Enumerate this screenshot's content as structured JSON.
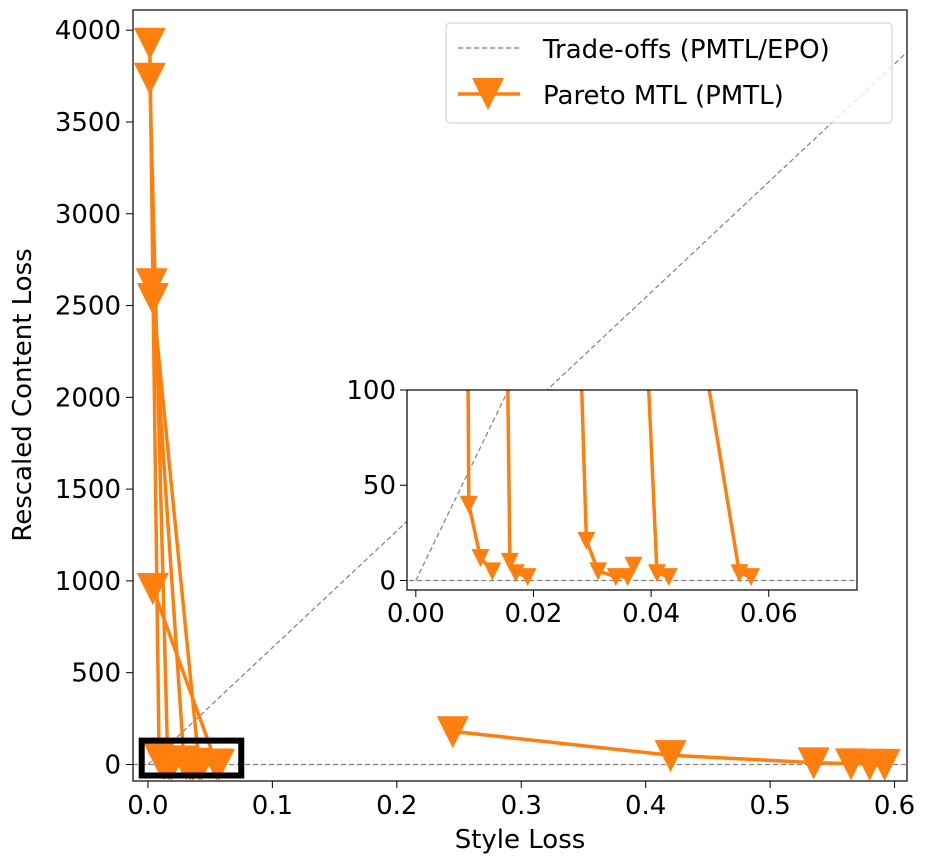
{
  "chart_data": {
    "type": "line",
    "xlabel": "Style Loss",
    "ylabel": "Rescaled Content Loss",
    "xlim": [
      -0.012,
      0.61
    ],
    "ylim": [
      -90,
      4110
    ],
    "xticks": [
      0.0,
      0.1,
      0.2,
      0.3,
      0.4,
      0.5,
      0.6
    ],
    "xtick_labels": [
      "0.0",
      "0.1",
      "0.2",
      "0.3",
      "0.4",
      "0.5",
      "0.6"
    ],
    "yticks": [
      0,
      500,
      1000,
      1500,
      2000,
      2500,
      3000,
      3500,
      4000
    ],
    "ytick_labels": [
      "0",
      "500",
      "1000",
      "1500",
      "2000",
      "2500",
      "3000",
      "3500",
      "4000"
    ],
    "legend": {
      "location": "top-right",
      "entries": [
        "Trade-offs (PMTL/EPO)",
        "Pareto MTL (PMTL)"
      ]
    },
    "colors": {
      "pmtl": "#ff7f0e",
      "tradeoff": "#808080",
      "zoom_box": "#000000"
    },
    "series": [
      {
        "name": "Pareto MTL (PMTL)",
        "style": "solid-line-triangle-down-markers",
        "runs": [
          {
            "x": [
              0.0015,
              0.009,
              0.011,
              0.013
            ],
            "y": [
              3930,
              40,
              12,
              5
            ]
          },
          {
            "x": [
              0.0015,
              0.016,
              0.017,
              0.019
            ],
            "y": [
              3740,
              10,
              4,
              2
            ]
          },
          {
            "x": [
              0.003,
              0.029,
              0.031,
              0.034,
              0.036,
              0.037
            ],
            "y": [
              2620,
              21,
              5,
              2,
              2,
              8
            ]
          },
          {
            "x": [
              0.004,
              0.041,
              0.043
            ],
            "y": [
              2540,
              4,
              2
            ]
          },
          {
            "x": [
              0.004,
              0.055,
              0.057
            ],
            "y": [
              960,
              4,
              2
            ]
          },
          {
            "x": [
              0.245,
              0.42,
              0.535,
              0.565,
              0.58,
              0.592
            ],
            "y": [
              180,
              50,
              10,
              5,
              3,
              2
            ]
          }
        ]
      },
      {
        "name": "Trade-offs (PMTL/EPO)",
        "style": "dashed-gray",
        "lines": [
          {
            "x": [
              0.0,
              0.61
            ],
            "y": [
              0,
              3880
            ]
          },
          {
            "x": [
              -0.012,
              0.61
            ],
            "y": [
              0,
              0
            ]
          }
        ]
      }
    ],
    "zoom_box": {
      "x": [
        -0.005,
        0.075
      ],
      "y": [
        -60,
        130
      ]
    },
    "inset": {
      "xlim": [
        -0.0015,
        0.075
      ],
      "ylim": [
        -5,
        100
      ],
      "xticks": [
        0.0,
        0.02,
        0.04,
        0.06
      ],
      "xtick_labels": [
        "0.00",
        "0.02",
        "0.04",
        "0.06"
      ],
      "yticks": [
        0,
        50,
        100
      ],
      "ytick_labels": [
        "0",
        "50",
        "100"
      ]
    }
  }
}
